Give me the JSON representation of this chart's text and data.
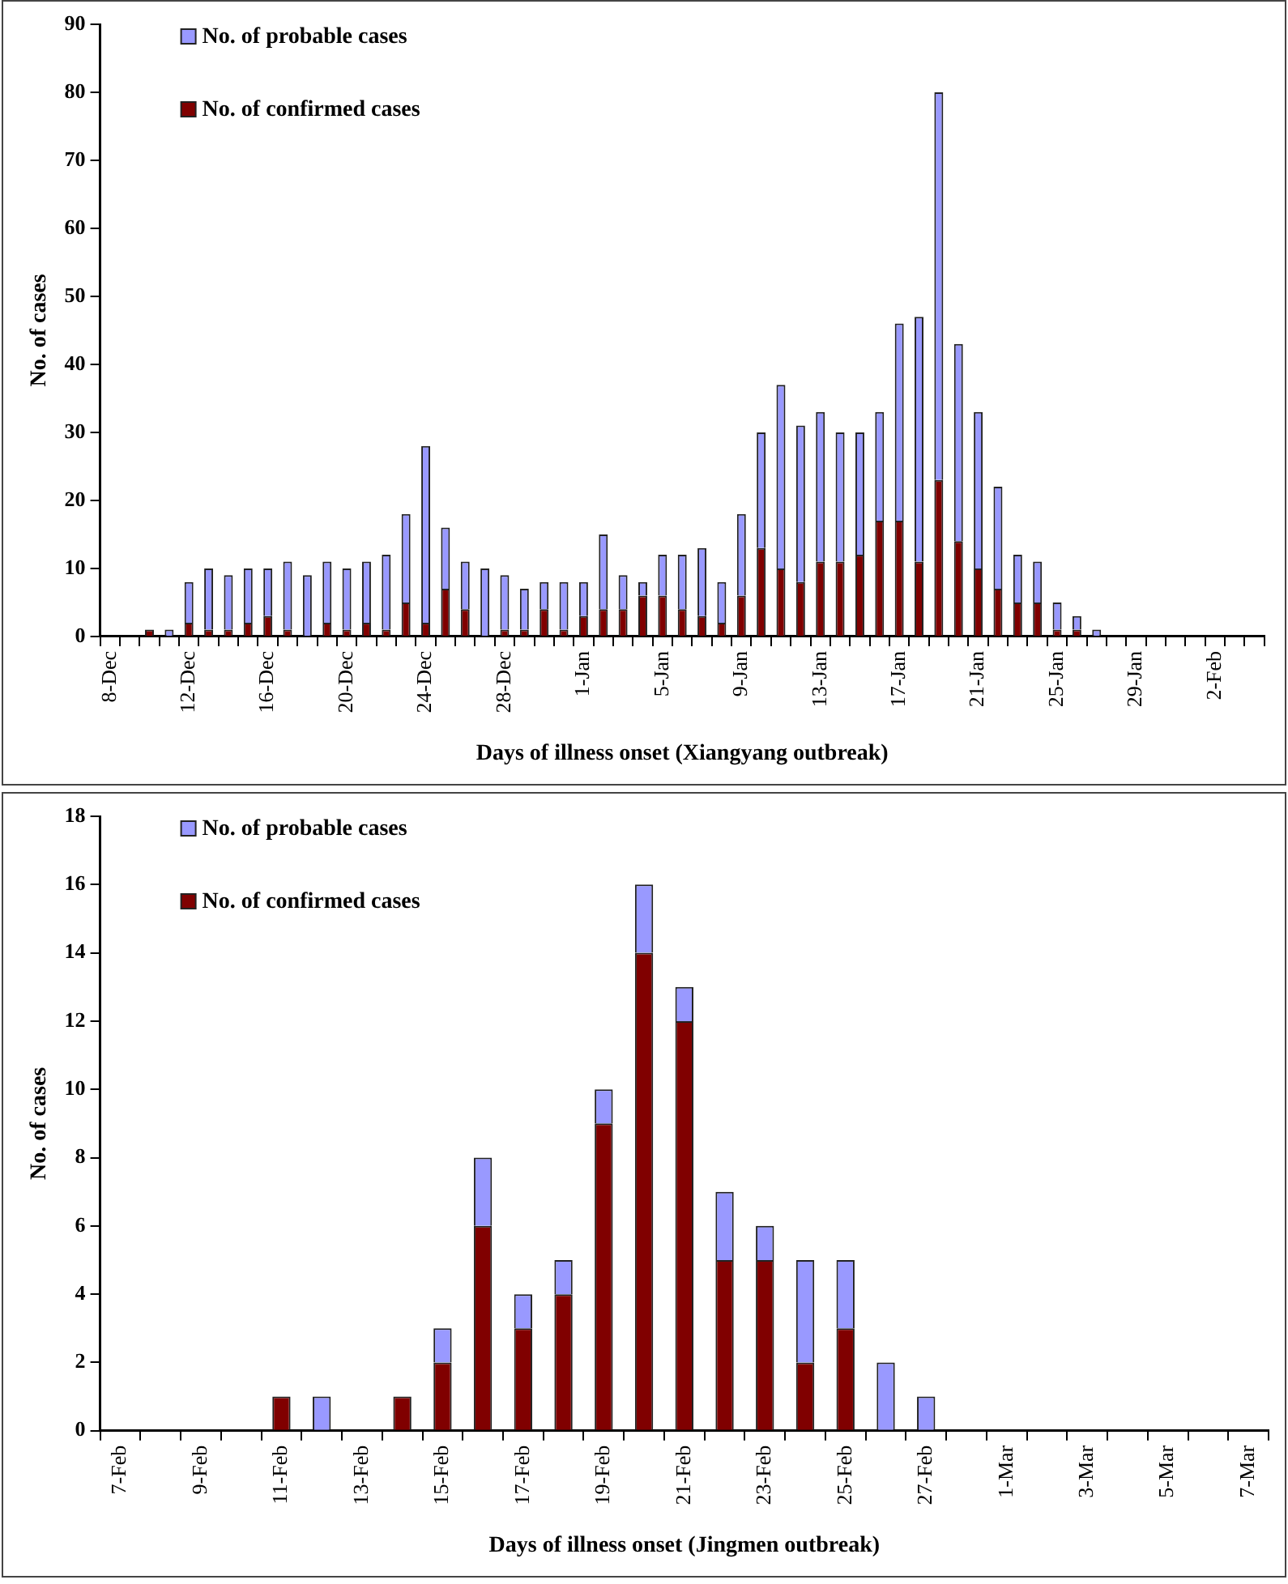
{
  "chart_data": [
    {
      "type": "bar",
      "stacked": true,
      "xlabel": "Days of illness onset (Xiangyang outbreak)",
      "ylabel": "No. of cases",
      "legend": "top left",
      "grid": false,
      "categories": [
        "8-Dec",
        null,
        null,
        null,
        "12-Dec",
        null,
        null,
        null,
        "16-Dec",
        null,
        null,
        null,
        "20-Dec",
        null,
        null,
        null,
        "24-Dec",
        null,
        null,
        null,
        "28-Dec",
        null,
        null,
        null,
        "1-Jan",
        null,
        null,
        null,
        "5-Jan",
        null,
        null,
        null,
        "9-Jan",
        null,
        null,
        null,
        "13-Jan",
        null,
        null,
        null,
        "17-Jan",
        null,
        null,
        null,
        "21-Jan",
        null,
        null,
        null,
        "25-Jan",
        null,
        null,
        null,
        "29-Jan",
        null,
        null,
        null,
        "2-Feb",
        null,
        null
      ],
      "ylim": [
        0,
        90
      ],
      "yticks": [
        0,
        10,
        20,
        30,
        40,
        50,
        60,
        70,
        80,
        90
      ],
      "series": [
        {
          "name": "No. of confirmed cases",
          "color": "#800000",
          "values": [
            0,
            0,
            1,
            0,
            2,
            1,
            1,
            2,
            3,
            1,
            0,
            2,
            1,
            2,
            1,
            5,
            2,
            7,
            4,
            0,
            1,
            1,
            4,
            1,
            3,
            4,
            4,
            6,
            6,
            4,
            3,
            2,
            6,
            13,
            10,
            8,
            11,
            11,
            12,
            17,
            17,
            11,
            23,
            14,
            10,
            7,
            5,
            5,
            1,
            1,
            0,
            0,
            0,
            0,
            0,
            0,
            0,
            0,
            0
          ]
        },
        {
          "name": "No. of probable cases",
          "color": "#9999ff",
          "values": [
            0,
            0,
            0,
            1,
            6,
            9,
            8,
            8,
            7,
            10,
            9,
            9,
            9,
            9,
            11,
            13,
            26,
            9,
            7,
            10,
            8,
            6,
            4,
            7,
            5,
            11,
            5,
            2,
            6,
            8,
            10,
            6,
            12,
            17,
            27,
            23,
            22,
            19,
            18,
            16,
            29,
            36,
            57,
            29,
            23,
            15,
            7,
            6,
            4,
            2,
            1,
            0,
            0,
            0,
            0,
            0,
            0,
            0,
            0
          ]
        }
      ]
    },
    {
      "type": "bar",
      "stacked": true,
      "xlabel": "Days of illness onset (Jingmen outbreak)",
      "ylabel": "No. of cases",
      "legend": "top left",
      "grid": false,
      "categories": [
        "7-Feb",
        null,
        "9-Feb",
        null,
        "11-Feb",
        null,
        "13-Feb",
        null,
        "15-Feb",
        null,
        "17-Feb",
        null,
        "19-Feb",
        null,
        "21-Feb",
        null,
        "23-Feb",
        null,
        "25-Feb",
        null,
        "27-Feb",
        null,
        "1-Mar",
        null,
        "3-Mar",
        null,
        "5-Mar",
        null,
        "7-Mar"
      ],
      "ylim": [
        0,
        18
      ],
      "yticks": [
        0,
        2,
        4,
        6,
        8,
        10,
        12,
        14,
        16,
        18
      ],
      "series": [
        {
          "name": "No. of confirmed cases",
          "color": "#800000",
          "values": [
            0,
            0,
            0,
            0,
            1,
            0,
            0,
            1,
            2,
            6,
            3,
            4,
            9,
            14,
            12,
            5,
            5,
            2,
            3,
            0,
            0,
            0,
            0,
            0,
            0,
            0,
            0,
            0,
            0
          ]
        },
        {
          "name": "No. of probable cases",
          "color": "#9999ff",
          "values": [
            0,
            0,
            0,
            0,
            0,
            1,
            0,
            0,
            1,
            2,
            1,
            1,
            1,
            2,
            1,
            2,
            1,
            3,
            2,
            2,
            1,
            0,
            0,
            0,
            0,
            0,
            0,
            0,
            0
          ]
        }
      ]
    }
  ]
}
